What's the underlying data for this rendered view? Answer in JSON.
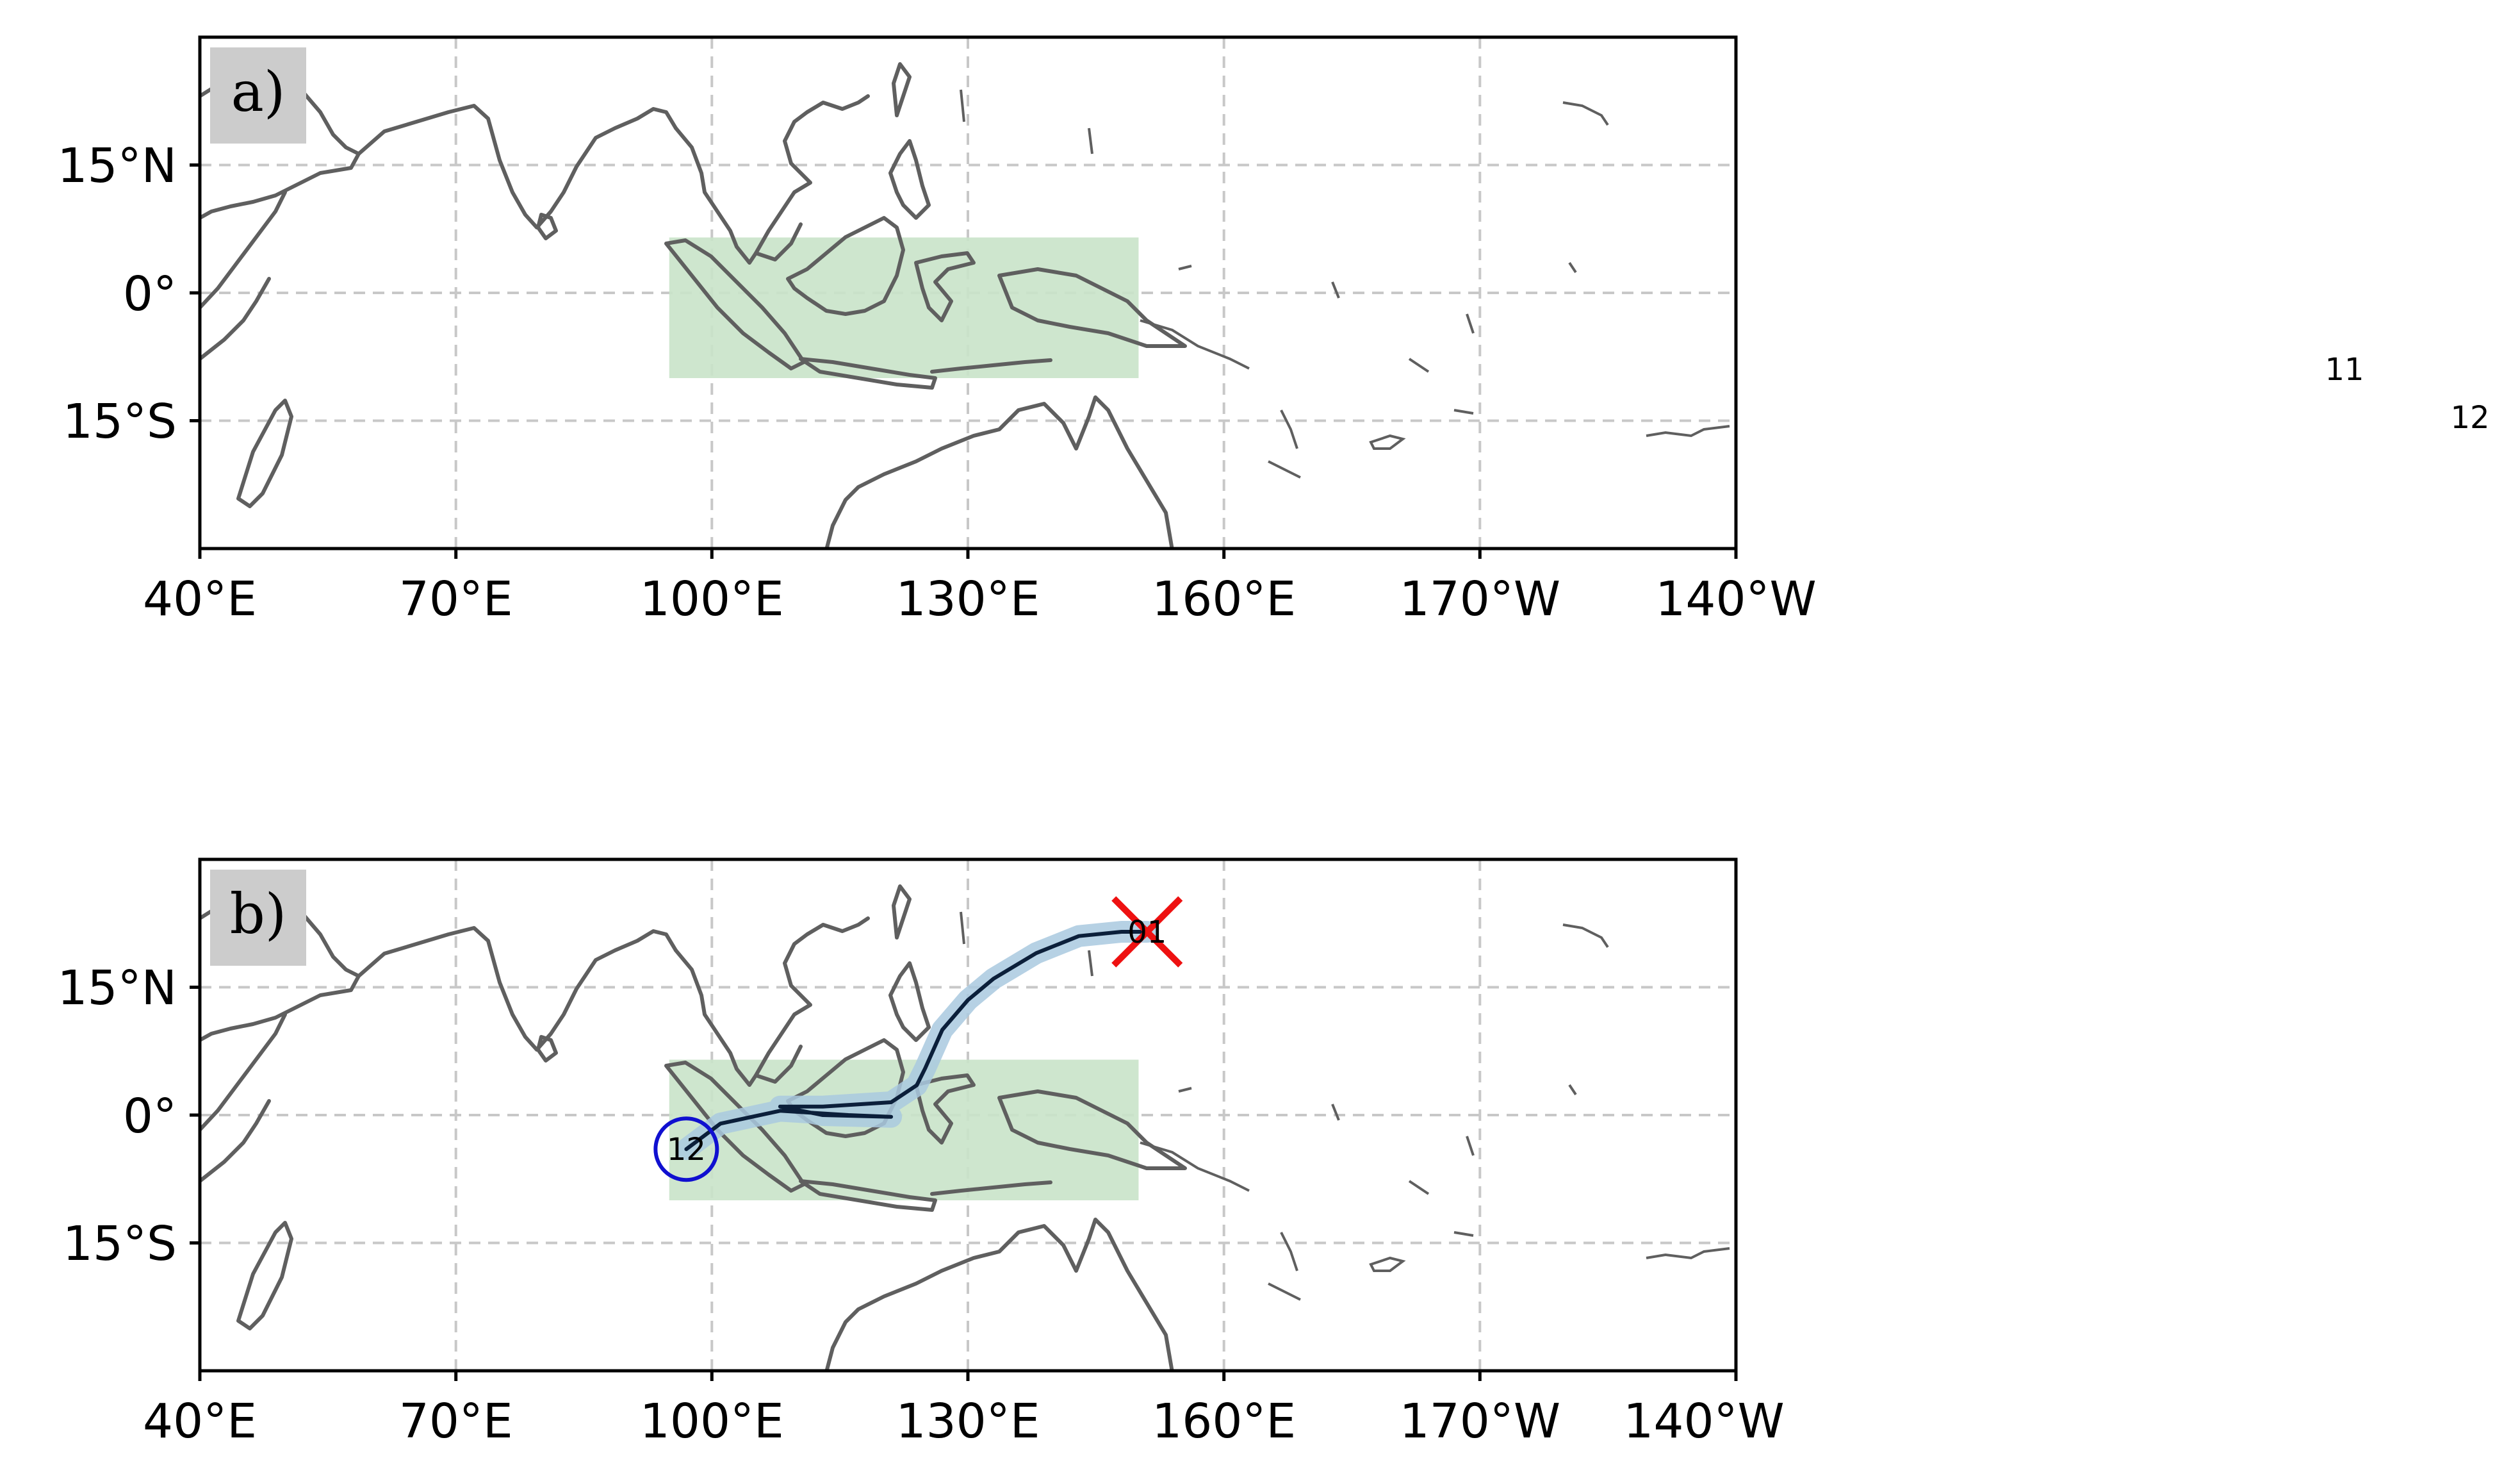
{
  "colors": {
    "coastline": "#5f5f5f",
    "gridline": "#c8c8c8",
    "region_fill": "#c9e3c9",
    "track_line": "#0b1f3a",
    "track_band": "#a9c9df",
    "genesis_marker": "#1010d0",
    "end_marker": "#ee1111",
    "panel_label_bg": "#cccccc"
  },
  "map": {
    "lon_ticks": [
      "40°E",
      "70°E",
      "100°E",
      "130°E",
      "160°E",
      "170°W",
      "140°W"
    ],
    "lat_ticks": [
      "15°N",
      "0°",
      "15°S"
    ],
    "grid": true
  },
  "region_box": {
    "lon": [
      95,
      150
    ],
    "lat": [
      -10,
      6.5
    ]
  },
  "panels": [
    {
      "label": "a)"
    },
    {
      "label": "b)",
      "track": {
        "start_label": "12",
        "end_label": "01",
        "points": [
          [
            97,
            -4
          ],
          [
            101,
            -1
          ],
          [
            108,
            0.5
          ],
          [
            116,
            0
          ],
          [
            121,
            -0.2
          ],
          [
            113,
            0
          ],
          [
            108,
            1
          ],
          [
            113,
            1
          ],
          [
            121,
            1.5
          ],
          [
            124,
            3.5
          ],
          [
            125,
            5.5
          ],
          [
            127,
            10
          ],
          [
            130,
            13.5
          ],
          [
            133,
            16
          ],
          [
            138,
            19
          ],
          [
            143,
            21
          ],
          [
            148,
            21.5
          ],
          [
            151,
            21.5
          ]
        ]
      }
    }
  ],
  "stray_labels": [
    "11",
    "12"
  ]
}
